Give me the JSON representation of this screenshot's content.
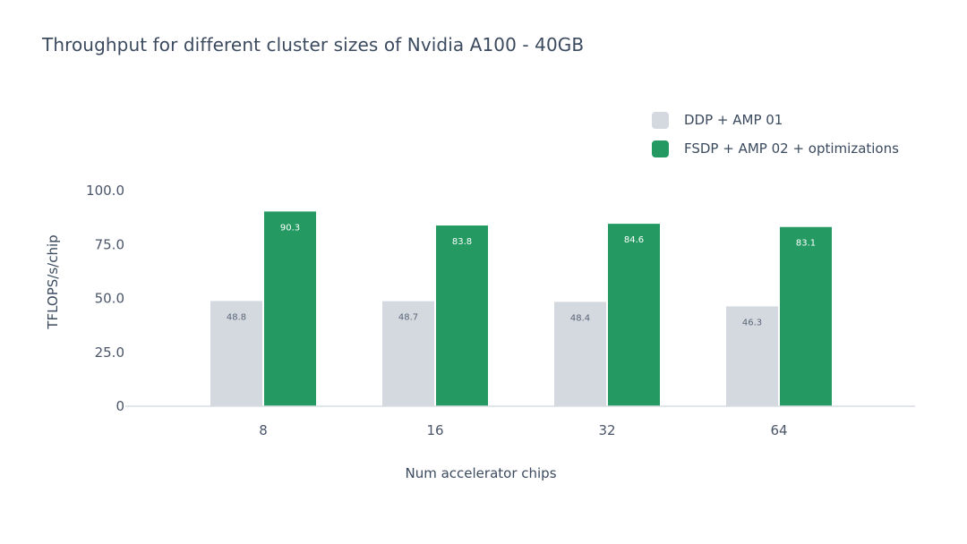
{
  "chart_data": {
    "type": "bar",
    "title": "Throughput for different cluster sizes of Nvidia A100 - 40GB",
    "xlabel": "Num accelerator chips",
    "ylabel": "TFLOPS/s/chip",
    "categories": [
      "8",
      "16",
      "32",
      "64"
    ],
    "series": [
      {
        "name": "DDP + AMP 01",
        "color": "#d4d9e0",
        "label_color": "#5a6577",
        "values": [
          48.8,
          48.7,
          48.4,
          46.3
        ],
        "value_labels": [
          "48.8",
          "48.7",
          "48.4",
          "46.3"
        ]
      },
      {
        "name": "FSDP + AMP 02 + optimizations",
        "color": "#249a62",
        "label_color": "#ffffff",
        "values": [
          90.3,
          83.8,
          84.6,
          83.1
        ],
        "value_labels": [
          "90.3",
          "83.8",
          "84.6",
          "83.1"
        ]
      }
    ],
    "ylim": [
      0,
      100
    ],
    "yticks": [
      0,
      25,
      50,
      75,
      100
    ],
    "ytick_labels": [
      "0",
      "25.0",
      "50.0",
      "75.0",
      "100.0"
    ],
    "grid": false,
    "legend_position": "top-right"
  }
}
